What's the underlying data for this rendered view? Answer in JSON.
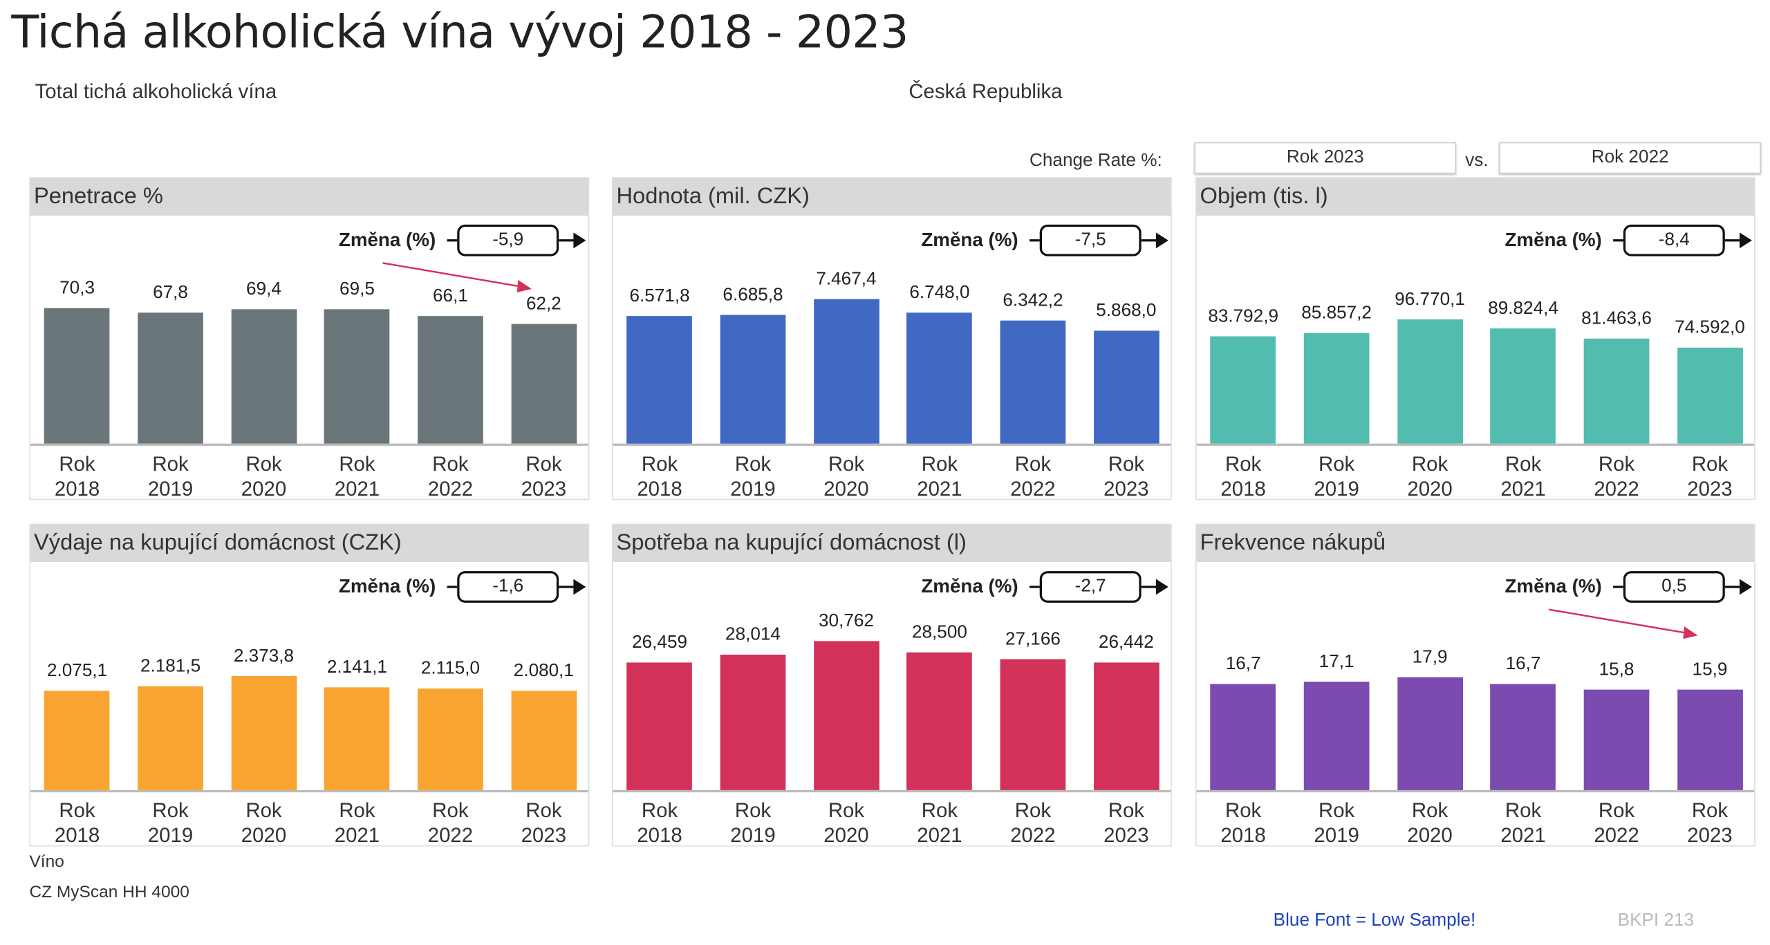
{
  "header": {
    "title": "Tichá alkoholická vína vývoj 2018 - 2023",
    "category": "Total tichá alkoholická vína",
    "market": "Česká Republika",
    "change_rate_label": "Change Rate %:",
    "period_current": "Rok 2023",
    "vs_label": "vs.",
    "period_compare": "Rok 2022"
  },
  "change_label": "Změna (%)",
  "footer": {
    "product": "Víno",
    "source": "CZ MyScan HH 4000",
    "note": "Blue Font = Low Sample!",
    "note_color": "#1f3fbf",
    "code": "BKPI 213"
  },
  "chart_data": [
    {
      "type": "bar",
      "title": "Penetrace %",
      "categories": [
        "Rok 2018",
        "Rok 2019",
        "Rok 2020",
        "Rok 2021",
        "Rok 2022",
        "Rok 2023"
      ],
      "values": [
        70.3,
        67.8,
        69.4,
        69.5,
        66.1,
        62.2
      ],
      "labels": [
        "70,3",
        "67,8",
        "69,4",
        "69,5",
        "66,1",
        "62,2"
      ],
      "change": "-5,9",
      "color": "#6b767b",
      "ylim": [
        0,
        118
      ],
      "trend_arrow": true
    },
    {
      "type": "bar",
      "title": "Hodnota (mil. CZK)",
      "categories": [
        "Rok 2018",
        "Rok 2019",
        "Rok 2020",
        "Rok 2021",
        "Rok 2022",
        "Rok 2023"
      ],
      "values": [
        6571.8,
        6685.8,
        7467.4,
        6748.0,
        6342.2,
        5868.0
      ],
      "labels": [
        "6.571,8",
        "6.685,8",
        "7.467,4",
        "6.748,0",
        "6.342,2",
        "5.868,0"
      ],
      "change": "-7,5",
      "color": "#4169c4",
      "ylim": [
        0,
        11800
      ],
      "trend_arrow": false
    },
    {
      "type": "bar",
      "title": "Objem (tis. l)",
      "categories": [
        "Rok 2018",
        "Rok 2019",
        "Rok 2020",
        "Rok 2021",
        "Rok 2022",
        "Rok 2023"
      ],
      "values": [
        83792.9,
        85857.2,
        96770.1,
        89824.4,
        81463.6,
        74592.0
      ],
      "labels": [
        "83.792,9",
        "85.857,2",
        "96.770,1",
        "89.824,4",
        "81.463,6",
        "74.592,0"
      ],
      "change": "-8,4",
      "color": "#52bcae",
      "ylim": [
        0,
        177700
      ],
      "trend_arrow": false
    },
    {
      "type": "bar",
      "title": "Výdaje na kupující domácnost (CZK)",
      "categories": [
        "Rok 2018",
        "Rok 2019",
        "Rok 2020",
        "Rok 2021",
        "Rok 2022",
        "Rok 2023"
      ],
      "values": [
        2075.1,
        2181.5,
        2373.8,
        2141.1,
        2115.0,
        2080.1
      ],
      "labels": [
        "2.075,1",
        "2.181,5",
        "2.373,8",
        "2.141,1",
        "2.115,0",
        "2.080,1"
      ],
      "change": "-1,6",
      "color": "#f9a431",
      "ylim": [
        0,
        4770
      ],
      "trend_arrow": false
    },
    {
      "type": "bar",
      "title": "Spotřeba na kupující domácnost (l)",
      "categories": [
        "Rok 2018",
        "Rok 2019",
        "Rok 2020",
        "Rok 2021",
        "Rok 2022",
        "Rok 2023"
      ],
      "values": [
        26.459,
        28.014,
        30.762,
        28.5,
        27.166,
        26.442
      ],
      "labels": [
        "26,459",
        "28,014",
        "30,762",
        "28,500",
        "27,166",
        "26,442"
      ],
      "change": "-2,7",
      "color": "#d2325a",
      "ylim": [
        0,
        47.2
      ],
      "trend_arrow": false
    },
    {
      "type": "bar",
      "title": "Frekvence nákupů",
      "categories": [
        "Rok 2018",
        "Rok 2019",
        "Rok 2020",
        "Rok 2021",
        "Rok 2022",
        "Rok 2023"
      ],
      "values": [
        16.7,
        17.1,
        17.9,
        16.7,
        15.8,
        15.9
      ],
      "labels": [
        "16,7",
        "17,1",
        "17,9",
        "16,7",
        "15,8",
        "15,9"
      ],
      "change": "0,5",
      "color": "#7b4bb0",
      "ylim": [
        0,
        36
      ],
      "trend_arrow": true
    }
  ]
}
